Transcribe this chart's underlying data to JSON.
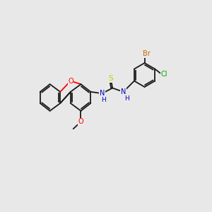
{
  "background_color": "#e8e8e8",
  "bond_color": "#1a1a1a",
  "atom_colors": {
    "O": "#ff0000",
    "N": "#0000cc",
    "S": "#cccc00",
    "Br": "#cc6600",
    "Cl": "#00aa00",
    "C": "#1a1a1a"
  },
  "font_size": 7.5,
  "lw": 1.3
}
